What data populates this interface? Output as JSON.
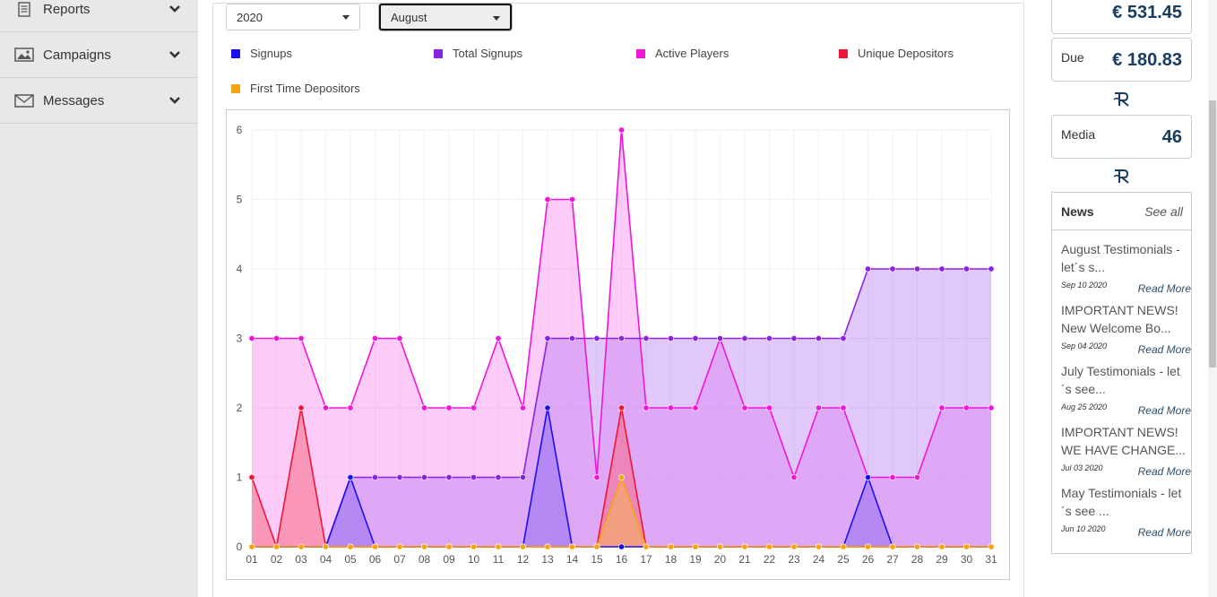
{
  "sidebar": {
    "items": [
      {
        "label": "Reports",
        "icon": "document-icon"
      },
      {
        "label": "Campaigns",
        "icon": "image-icon"
      },
      {
        "label": "Messages",
        "icon": "envelope-icon"
      }
    ]
  },
  "filters": {
    "year": "2020",
    "month": "August"
  },
  "legend": [
    {
      "label": "Signups",
      "color": "#1a0ff0"
    },
    {
      "label": "Total Signups",
      "color": "#8a22e6"
    },
    {
      "label": "Active Players",
      "color": "#f016d8"
    },
    {
      "label": "Unique Depositors",
      "color": "#f01436"
    },
    {
      "label": "First Time Depositors",
      "color": "#f7a30f"
    }
  ],
  "chart_data": {
    "type": "area",
    "categories": [
      "01",
      "02",
      "03",
      "04",
      "05",
      "06",
      "07",
      "08",
      "09",
      "10",
      "11",
      "12",
      "13",
      "14",
      "15",
      "16",
      "17",
      "18",
      "19",
      "20",
      "21",
      "22",
      "23",
      "24",
      "25",
      "26",
      "27",
      "28",
      "29",
      "30",
      "31"
    ],
    "ylim": [
      0,
      6
    ],
    "yticks": [
      "0",
      "1",
      "2",
      "3",
      "4",
      "5",
      "6"
    ],
    "grid": true,
    "series": [
      {
        "name": "Active Players",
        "color": "#f016d8",
        "fill": "rgba(248,140,240,0.45)",
        "values": [
          3,
          3,
          3,
          2,
          2,
          3,
          3,
          2,
          2,
          2,
          3,
          2,
          5,
          5,
          1,
          6,
          2,
          2,
          2,
          3,
          2,
          2,
          1,
          2,
          2,
          1,
          1,
          1,
          2,
          2,
          2
        ]
      },
      {
        "name": "Total Signups",
        "color": "#8a22e6",
        "fill": "rgba(175,110,245,0.38)",
        "values": [
          0,
          0,
          0,
          0,
          1,
          1,
          1,
          1,
          1,
          1,
          1,
          1,
          3,
          3,
          3,
          3,
          3,
          3,
          3,
          3,
          3,
          3,
          3,
          3,
          3,
          4,
          4,
          4,
          4,
          4,
          4
        ]
      },
      {
        "name": "Signups",
        "color": "#1a0ff0",
        "fill": "rgba(60,40,230,0.25)",
        "values": [
          0,
          0,
          0,
          0,
          1,
          0,
          0,
          0,
          0,
          0,
          0,
          0,
          2,
          0,
          0,
          0,
          0,
          0,
          0,
          0,
          0,
          0,
          0,
          0,
          0,
          1,
          0,
          0,
          0,
          0,
          0
        ]
      },
      {
        "name": "Unique Depositors",
        "color": "#f01436",
        "fill": "rgba(250,90,110,0.45)",
        "values": [
          1,
          0,
          2,
          0,
          0,
          0,
          0,
          0,
          0,
          0,
          0,
          0,
          0,
          0,
          0,
          2,
          0,
          0,
          0,
          0,
          0,
          0,
          0,
          0,
          0,
          0,
          0,
          0,
          0,
          0,
          0
        ]
      },
      {
        "name": "First Time Depositors",
        "color": "#f7a30f",
        "fill": "rgba(250,190,60,0.45)",
        "values": [
          0,
          0,
          0,
          0,
          0,
          0,
          0,
          0,
          0,
          0,
          0,
          0,
          0,
          0,
          0,
          1,
          0,
          0,
          0,
          0,
          0,
          0,
          0,
          0,
          0,
          0,
          0,
          0,
          0,
          0,
          0
        ]
      }
    ]
  },
  "stats": {
    "top_value": "€ 531.45",
    "due": {
      "label": "Due",
      "value": "€ 180.83"
    },
    "media": {
      "label": "Media",
      "value": "46"
    }
  },
  "news": {
    "title": "News",
    "see_all": "See all",
    "items": [
      {
        "text": "August Testimonials - let´s s...",
        "date": "Sep 10 2020",
        "more": "Read More"
      },
      {
        "text": "IMPORTANT NEWS! New Welcome Bo...",
        "date": "Sep 04 2020",
        "more": "Read More"
      },
      {
        "text": "July Testimonials - let´s see...",
        "date": "Aug 25 2020",
        "more": "Read More"
      },
      {
        "text": "IMPORTANT NEWS! WE HAVE CHANGE...",
        "date": "Jul 03 2020",
        "more": "Read More"
      },
      {
        "text": "May Testimonials - let´s see ...",
        "date": "Jun 10 2020",
        "more": "Read More"
      }
    ]
  }
}
